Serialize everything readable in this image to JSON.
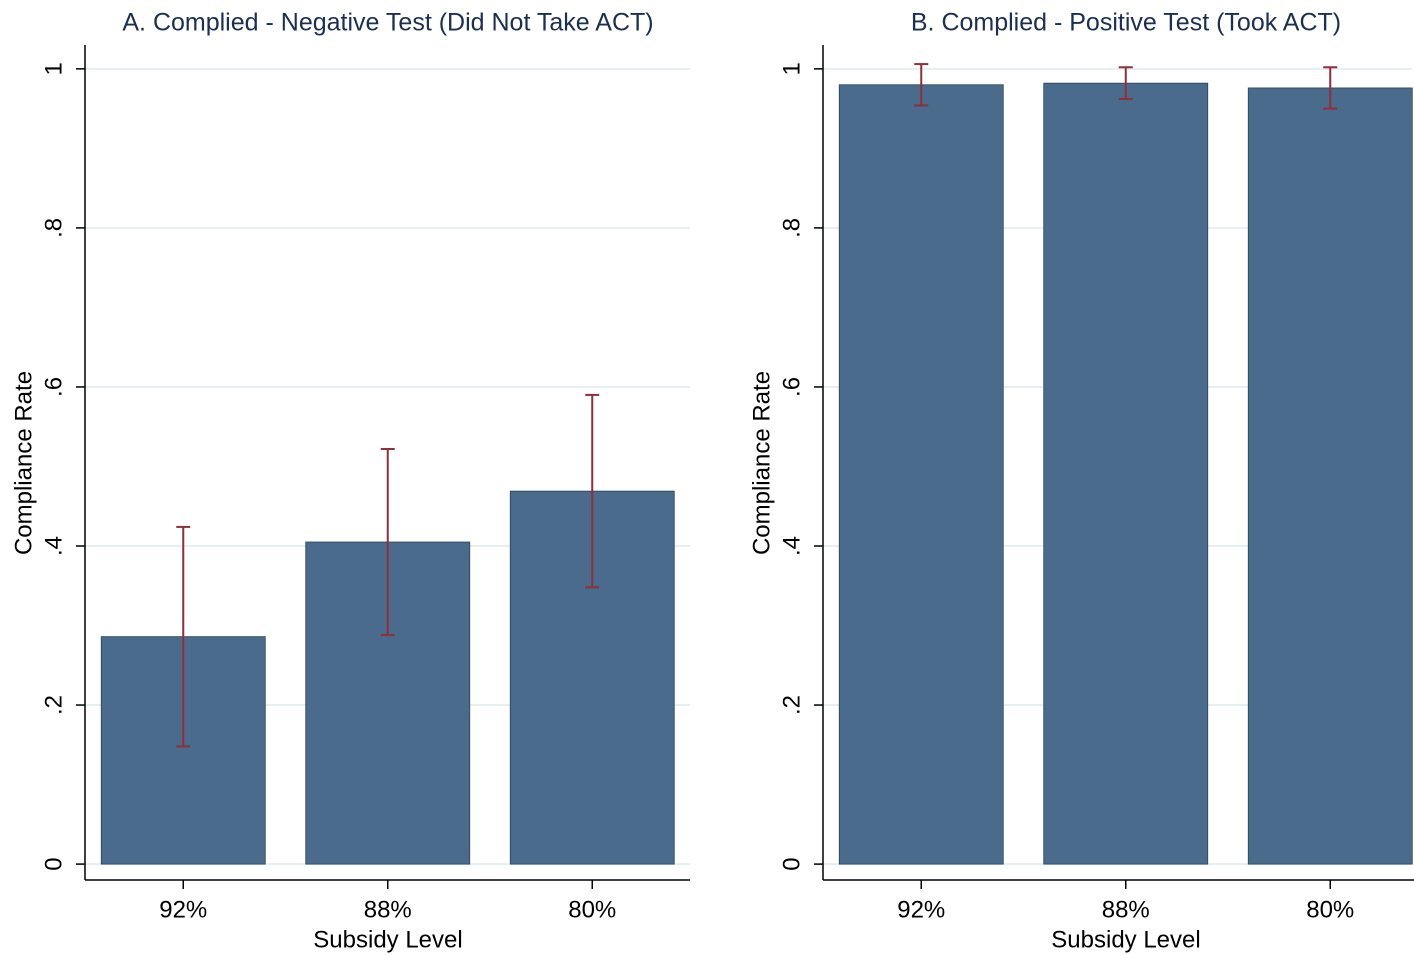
{
  "chart_data": [
    {
      "type": "bar",
      "title": "A. Complied - Negative Test (Did Not Take ACT)",
      "x_label": "Subsidy Level",
      "y_label": "Compliance Rate",
      "categories": [
        "92%",
        "88%",
        "80%"
      ],
      "values": [
        0.286,
        0.405,
        0.469
      ],
      "errors": [
        0.138,
        0.117,
        0.121
      ],
      "color": "#4a6b8c",
      "error_color": "#8e2f3c",
      "ylim": [
        -0.02,
        1.03
      ],
      "yticks": [
        0,
        {
          "value": 0.2,
          "label": ".2"
        },
        {
          "value": 0.4,
          "label": ".4"
        },
        {
          "value": 0.6,
          "label": ".6"
        },
        {
          "value": 0.8,
          "label": ".8"
        },
        1
      ],
      "grid": true
    },
    {
      "type": "bar",
      "title": "B. Complied - Positive Test (Took ACT)",
      "x_label": "Subsidy Level",
      "y_label": "Compliance Rate",
      "categories": [
        "92%",
        "88%",
        "80%"
      ],
      "values": [
        0.98,
        0.982,
        0.976
      ],
      "errors": [
        0.026,
        0.02,
        0.026
      ],
      "color": "#4a6b8c",
      "error_color": "#8e2f3c",
      "ylim": [
        -0.02,
        1.03
      ],
      "yticks": [
        0,
        {
          "value": 0.2,
          "label": ".2"
        },
        {
          "value": 0.4,
          "label": ".4"
        },
        {
          "value": 0.6,
          "label": ".6"
        },
        {
          "value": 0.8,
          "label": ".8"
        },
        1
      ],
      "grid": true
    }
  ]
}
